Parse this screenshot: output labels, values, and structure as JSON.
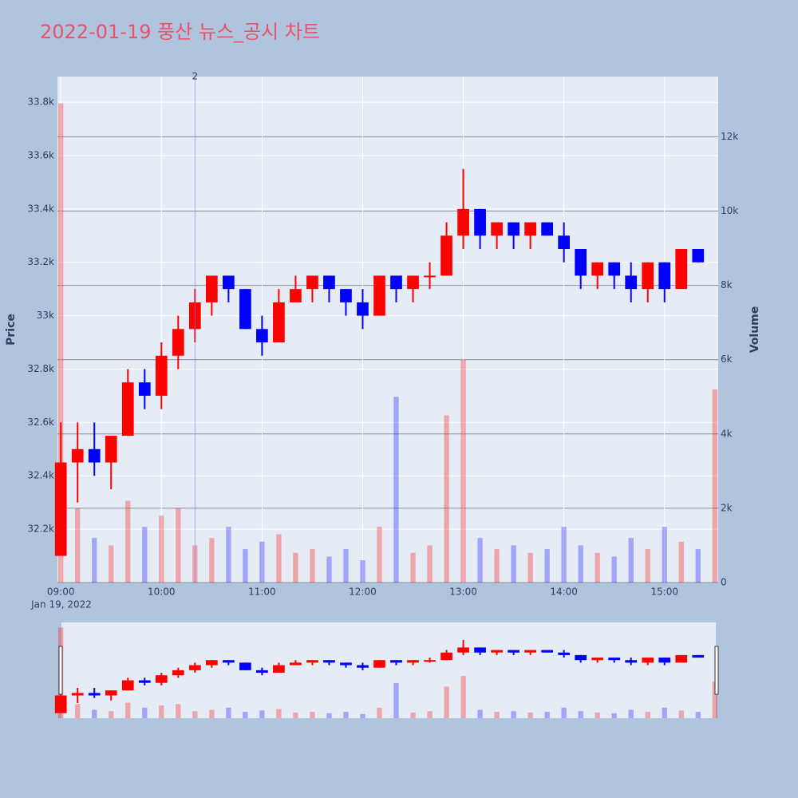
{
  "chart_data": {
    "type": "candlestick",
    "title": "2022-01-19 풍산 뉴스_공시 차트",
    "y_title": "Price",
    "y2_title": "Volume",
    "date_label": "Jan 19, 2022",
    "increasing_color": "#ff0000",
    "decreasing_color": "#0000ff",
    "x": [
      "09:00",
      "09:10",
      "09:20",
      "09:30",
      "09:40",
      "09:50",
      "10:00",
      "10:10",
      "10:20",
      "10:30",
      "10:40",
      "10:50",
      "11:00",
      "11:10",
      "11:20",
      "11:30",
      "11:40",
      "11:50",
      "12:00",
      "12:10",
      "12:20",
      "12:30",
      "12:40",
      "12:50",
      "13:00",
      "13:10",
      "13:20",
      "13:30",
      "13:40",
      "13:50",
      "14:00",
      "14:10",
      "14:20",
      "14:30",
      "14:40",
      "14:50",
      "15:00",
      "15:10",
      "15:20",
      "15:30"
    ],
    "open": [
      32100,
      32450,
      32500,
      32450,
      32550,
      32750,
      32700,
      32850,
      32950,
      33050,
      33150,
      33100,
      32950,
      32900,
      33050,
      33100,
      33150,
      33100,
      33050,
      33000,
      33150,
      33100,
      33150,
      33150,
      33300,
      33400,
      33300,
      33350,
      33300,
      33350,
      33300,
      33250,
      33150,
      33200,
      33150,
      33100,
      33200,
      33100,
      33250,
      null
    ],
    "high": [
      32600,
      32600,
      32600,
      32550,
      32800,
      32800,
      32900,
      33000,
      33100,
      33150,
      33150,
      33100,
      33000,
      33100,
      33150,
      33150,
      33150,
      33100,
      33100,
      33150,
      33150,
      33150,
      33200,
      33350,
      33550,
      33400,
      33350,
      33350,
      33350,
      33350,
      33350,
      33250,
      33200,
      33200,
      33200,
      33200,
      33200,
      33250,
      33250,
      null
    ],
    "low": [
      32100,
      32300,
      32400,
      32350,
      32550,
      32650,
      32650,
      32800,
      32900,
      33000,
      33050,
      32950,
      32850,
      32900,
      33050,
      33050,
      33050,
      33000,
      32950,
      33000,
      33050,
      33050,
      33100,
      33150,
      33250,
      33250,
      33250,
      33250,
      33250,
      33300,
      33200,
      33100,
      33100,
      33100,
      33050,
      33050,
      33050,
      33100,
      33200,
      null
    ],
    "close": [
      32450,
      32500,
      32450,
      32550,
      32750,
      32700,
      32850,
      32950,
      33050,
      33150,
      33100,
      32950,
      32900,
      33050,
      33100,
      33150,
      33100,
      33050,
      33000,
      33150,
      33100,
      33150,
      33150,
      33300,
      33400,
      33300,
      33350,
      33300,
      33350,
      33300,
      33250,
      33150,
      33200,
      33150,
      33100,
      33200,
      33100,
      33250,
      33200,
      null
    ],
    "volume": [
      12900,
      2000,
      1200,
      1000,
      2200,
      1500,
      1800,
      2000,
      1000,
      1200,
      1500,
      900,
      1100,
      1300,
      800,
      900,
      700,
      900,
      600,
      1500,
      5000,
      800,
      1000,
      4500,
      6000,
      1200,
      900,
      1000,
      800,
      900,
      1500,
      1000,
      800,
      700,
      1200,
      900,
      1500,
      1100,
      900,
      5200
    ],
    "xlim": [
      "08:58",
      "15:32"
    ],
    "xticks": [
      "09:00",
      "10:00",
      "11:00",
      "12:00",
      "13:00",
      "14:00",
      "15:00"
    ],
    "ylim": [
      32000,
      33896
    ],
    "yticks": [
      {
        "value": 32200,
        "label": "32.2k"
      },
      {
        "value": 32400,
        "label": "32.4k"
      },
      {
        "value": 32600,
        "label": "32.6k"
      },
      {
        "value": 32800,
        "label": "32.8k"
      },
      {
        "value": 33000,
        "label": "33k"
      },
      {
        "value": 33200,
        "label": "33.2k"
      },
      {
        "value": 33400,
        "label": "33.4k"
      },
      {
        "value": 33600,
        "label": "33.6k"
      },
      {
        "value": 33800,
        "label": "33.8k"
      }
    ],
    "y2lim": [
      0,
      13620
    ],
    "y2ticks": [
      0,
      {
        "value": 2000,
        "label": "2k"
      },
      {
        "value": 4000,
        "label": "4k"
      },
      {
        "value": 6000,
        "label": "6k"
      },
      {
        "value": 8000,
        "label": "8k"
      },
      {
        "value": 10000,
        "label": "10k"
      },
      {
        "value": 12000,
        "label": "12k"
      }
    ],
    "annotations": [
      {
        "x": "10:20",
        "text": "2"
      }
    ],
    "grid": true,
    "rangeslider": true
  }
}
